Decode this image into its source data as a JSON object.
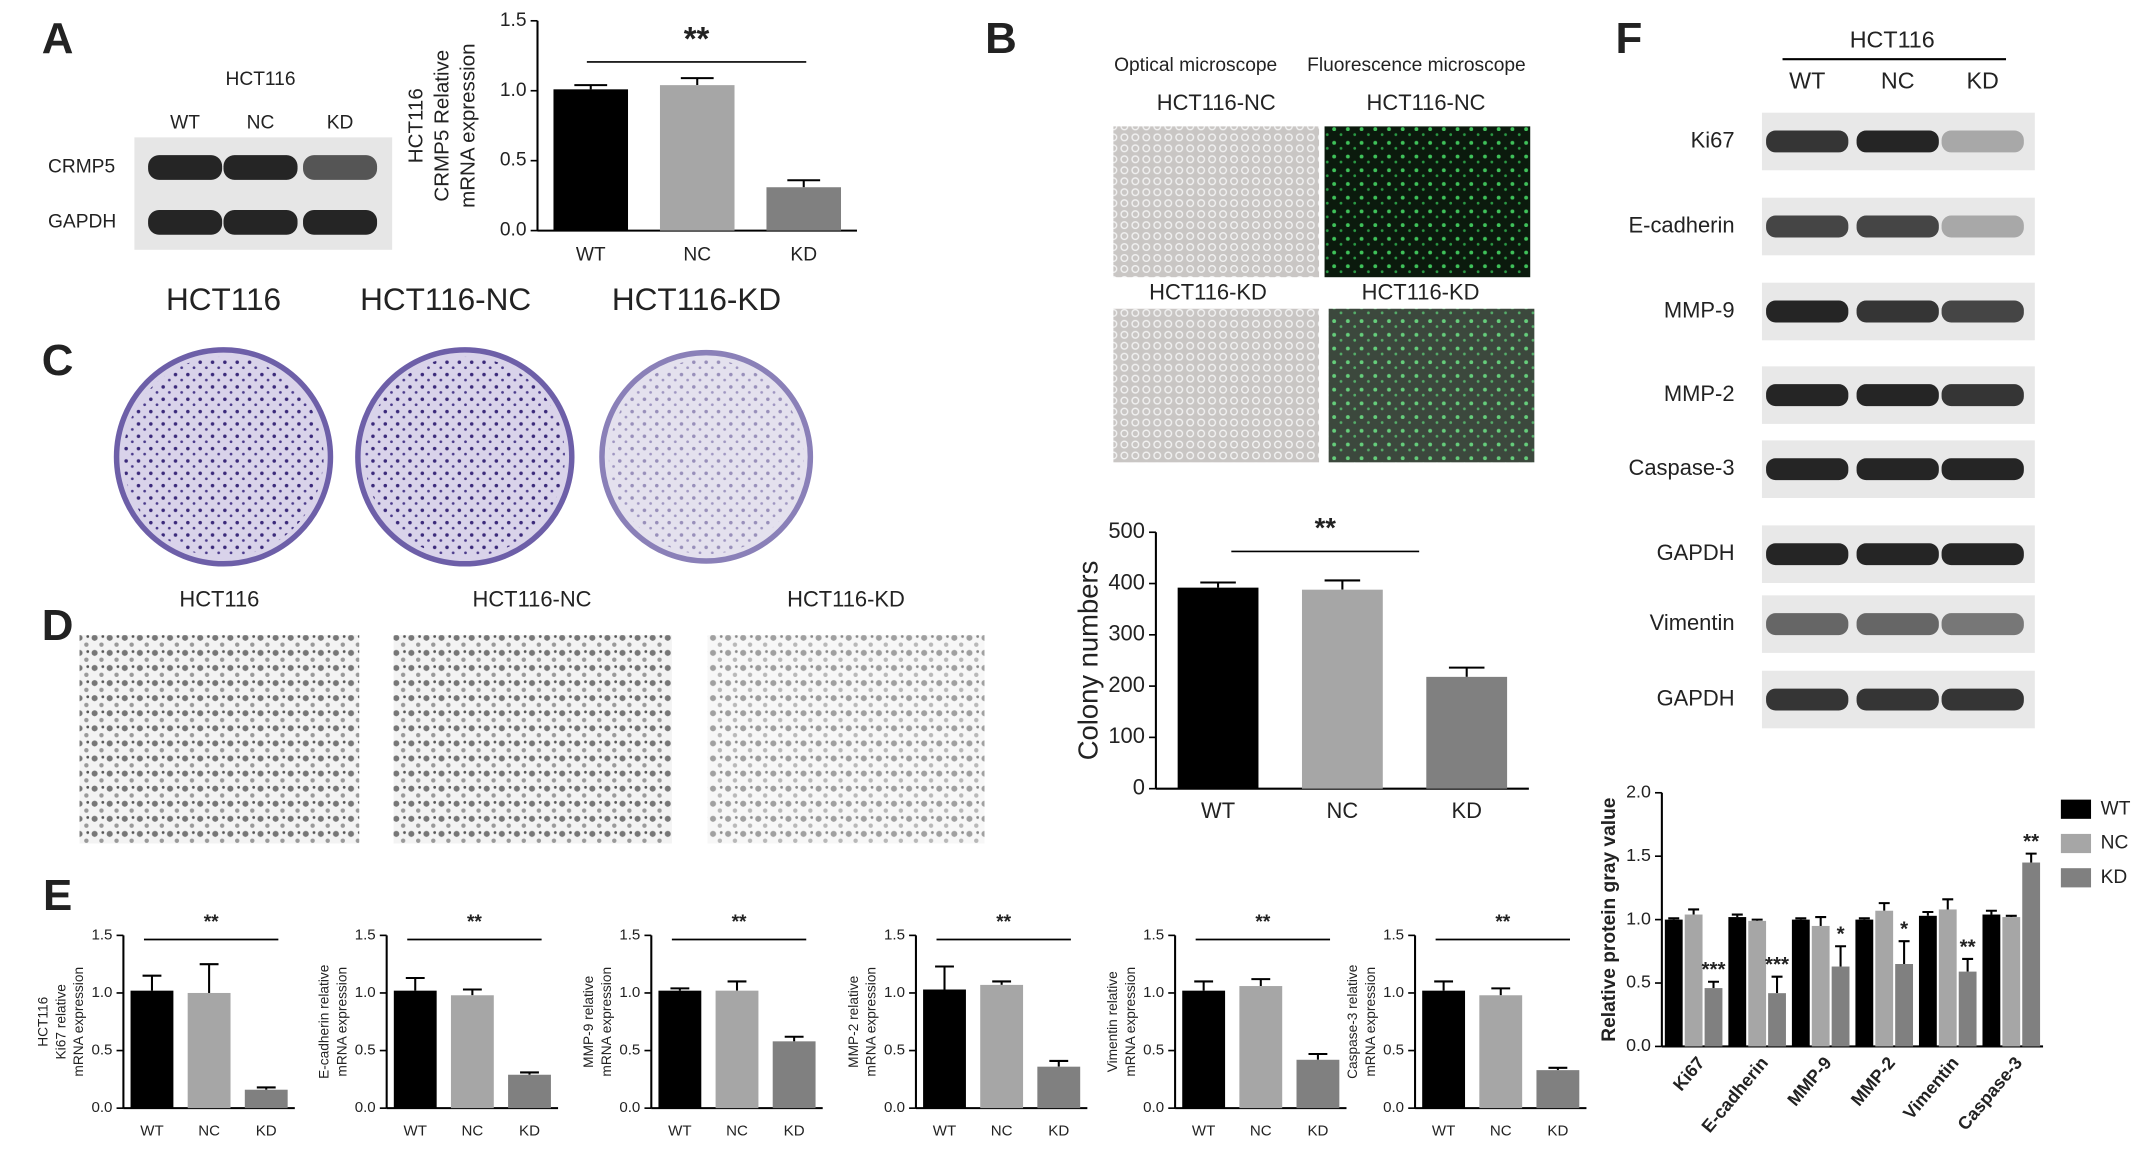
{
  "panels": {
    "A": {
      "letter": "A",
      "blot_title": "HCT116",
      "lanes": [
        "WT",
        "NC",
        "KD"
      ],
      "bands": [
        "CRMP5",
        "GAPDH"
      ]
    },
    "B": {
      "letter": "B",
      "columns": [
        "Optical microscope",
        "Fluorescence microscope"
      ],
      "labels": [
        "HCT116-NC",
        "HCT116-NC",
        "HCT116-KD",
        "HCT116-KD"
      ]
    },
    "C": {
      "letter": "C",
      "labels": [
        "HCT116",
        "HCT116-NC",
        "HCT116-KD"
      ]
    },
    "D": {
      "letter": "D",
      "labels": [
        "HCT116",
        "HCT116-NC",
        "HCT116-KD"
      ]
    },
    "E": {
      "letter": "E"
    },
    "F": {
      "letter": "F",
      "blot_title": "HCT116",
      "lanes": [
        "WT",
        "NC",
        "KD"
      ],
      "bands": [
        "Ki67",
        "E-cadherin",
        "MMP-9",
        "MMP-2",
        "Caspase-3",
        "GAPDH",
        "Vimentin",
        "GAPDH"
      ]
    }
  },
  "chart_data": [
    {
      "type": "bar",
      "ylabel": [
        "HCT116",
        "CRMP5 Relative",
        "mRNA expression"
      ],
      "categories": [
        "WT",
        "NC",
        "KD"
      ],
      "values": [
        1.01,
        1.04,
        0.31
      ],
      "errors": [
        0.03,
        0.05,
        0.05
      ],
      "colors": [
        "#000000",
        "#a6a6a6",
        "#808080"
      ],
      "ylim": [
        0,
        1.5
      ],
      "yticks": [
        {
          "value": 0,
          "label": "0.0"
        },
        {
          "value": 0.5,
          "label": "0.5"
        },
        {
          "value": 1,
          "label": "1.0"
        },
        {
          "value": 1.5,
          "label": "1.5"
        }
      ],
      "annotation": "**"
    },
    {
      "type": "bar",
      "ylabel": [
        "Colony numbers"
      ],
      "categories": [
        "WT",
        "NC",
        "KD"
      ],
      "values": [
        392,
        388,
        218
      ],
      "errors": [
        10,
        18,
        18
      ],
      "colors": [
        "#000000",
        "#a6a6a6",
        "#808080"
      ],
      "ylim": [
        0,
        500
      ],
      "yticks": [
        0,
        100,
        200,
        300,
        400,
        500
      ],
      "annotation": "**"
    },
    {
      "type": "bar",
      "ylabel": [
        "HCT116",
        "Ki67 relative",
        "mRNA expression"
      ],
      "categories": [
        "WT",
        "NC",
        "KD"
      ],
      "values": [
        1.02,
        1.0,
        0.16
      ],
      "errors": [
        0.13,
        0.25,
        0.02
      ],
      "colors": [
        "#000000",
        "#a6a6a6",
        "#808080"
      ],
      "ylim": [
        0,
        1.5
      ],
      "yticks": [
        {
          "value": 0,
          "label": "0.0"
        },
        {
          "value": 0.5,
          "label": "0.5"
        },
        {
          "value": 1,
          "label": "1.0"
        },
        {
          "value": 1.5,
          "label": "1.5"
        }
      ],
      "annotation": "**"
    },
    {
      "type": "bar",
      "ylabel": [
        "E-cadherin relative",
        "mRNA expression"
      ],
      "categories": [
        "WT",
        "NC",
        "KD"
      ],
      "values": [
        1.02,
        0.98,
        0.29
      ],
      "errors": [
        0.11,
        0.05,
        0.02
      ],
      "colors": [
        "#000000",
        "#a6a6a6",
        "#808080"
      ],
      "ylim": [
        0,
        1.5
      ],
      "yticks": [
        {
          "value": 0,
          "label": "0.0"
        },
        {
          "value": 0.5,
          "label": "0.5"
        },
        {
          "value": 1,
          "label": "1.0"
        },
        {
          "value": 1.5,
          "label": "1.5"
        }
      ],
      "annotation": "**"
    },
    {
      "type": "bar",
      "ylabel": [
        "MMP-9 relative",
        "mRNA expression"
      ],
      "categories": [
        "WT",
        "NC",
        "KD"
      ],
      "values": [
        1.02,
        1.02,
        0.58
      ],
      "errors": [
        0.02,
        0.08,
        0.04
      ],
      "colors": [
        "#000000",
        "#a6a6a6",
        "#808080"
      ],
      "ylim": [
        0,
        1.5
      ],
      "yticks": [
        {
          "value": 0,
          "label": "0.0"
        },
        {
          "value": 0.5,
          "label": "0.5"
        },
        {
          "value": 1,
          "label": "1.0"
        },
        {
          "value": 1.5,
          "label": "1.5"
        }
      ],
      "annotation": "**"
    },
    {
      "type": "bar",
      "ylabel": [
        "MMP-2 relative",
        "mRNA expression"
      ],
      "categories": [
        "WT",
        "NC",
        "KD"
      ],
      "values": [
        1.03,
        1.07,
        0.36
      ],
      "errors": [
        0.2,
        0.03,
        0.05
      ],
      "colors": [
        "#000000",
        "#a6a6a6",
        "#808080"
      ],
      "ylim": [
        0,
        1.5
      ],
      "yticks": [
        {
          "value": 0,
          "label": "0.0"
        },
        {
          "value": 0.5,
          "label": "0.5"
        },
        {
          "value": 1,
          "label": "1.0"
        },
        {
          "value": 1.5,
          "label": "1.5"
        }
      ],
      "annotation": "**"
    },
    {
      "type": "bar",
      "ylabel": [
        "Vimentin relative",
        "mRNA expression"
      ],
      "categories": [
        "WT",
        "NC",
        "KD"
      ],
      "values": [
        1.02,
        1.06,
        0.42
      ],
      "errors": [
        0.08,
        0.06,
        0.05
      ],
      "colors": [
        "#000000",
        "#a6a6a6",
        "#808080"
      ],
      "ylim": [
        0,
        1.5
      ],
      "yticks": [
        {
          "value": 0,
          "label": "0.0"
        },
        {
          "value": 0.5,
          "label": "0.5"
        },
        {
          "value": 1,
          "label": "1.0"
        },
        {
          "value": 1.5,
          "label": "1.5"
        }
      ],
      "annotation": "**"
    },
    {
      "type": "bar",
      "ylabel": [
        "Caspase-3 relative",
        "mRNA expression"
      ],
      "categories": [
        "WT",
        "NC",
        "KD"
      ],
      "values": [
        1.02,
        0.98,
        0.33
      ],
      "errors": [
        0.08,
        0.06,
        0.02
      ],
      "colors": [
        "#000000",
        "#a6a6a6",
        "#808080"
      ],
      "ylim": [
        0,
        1.5
      ],
      "yticks": [
        {
          "value": 0,
          "label": "0.0"
        },
        {
          "value": 0.5,
          "label": "0.5"
        },
        {
          "value": 1,
          "label": "1.0"
        },
        {
          "value": 1.5,
          "label": "1.5"
        }
      ],
      "annotation": "**"
    },
    {
      "type": "grouped_bar",
      "ylabel": "Relative protein gray value",
      "categories": [
        "Ki67",
        "E-cadherin",
        "MMP-9",
        "MMP-2",
        "Vimentin",
        "Caspase-3"
      ],
      "series": [
        {
          "name": "WT",
          "color": "#000000",
          "values": [
            1.0,
            1.02,
            1.0,
            1.0,
            1.03,
            1.04
          ],
          "errors": [
            0.01,
            0.02,
            0.01,
            0.01,
            0.03,
            0.03
          ]
        },
        {
          "name": "NC",
          "color": "#a6a6a6",
          "values": [
            1.04,
            0.99,
            0.95,
            1.07,
            1.08,
            1.02
          ],
          "errors": [
            0.04,
            0.01,
            0.07,
            0.06,
            0.08,
            0.01
          ]
        },
        {
          "name": "KD",
          "color": "#808080",
          "values": [
            0.46,
            0.42,
            0.63,
            0.65,
            0.59,
            1.45
          ],
          "errors": [
            0.05,
            0.13,
            0.16,
            0.18,
            0.1,
            0.07
          ]
        }
      ],
      "annotations": [
        "***",
        "***",
        "*",
        "*",
        "**",
        "**"
      ],
      "ylim": [
        0,
        2
      ],
      "yticks": [
        {
          "value": 0,
          "label": "0.0"
        },
        {
          "value": 0.5,
          "label": "0.5"
        },
        {
          "value": 1,
          "label": "1.0"
        },
        {
          "value": 1.5,
          "label": "1.5"
        },
        {
          "value": 2,
          "label": "2.0"
        }
      ],
      "legend": "right"
    }
  ]
}
